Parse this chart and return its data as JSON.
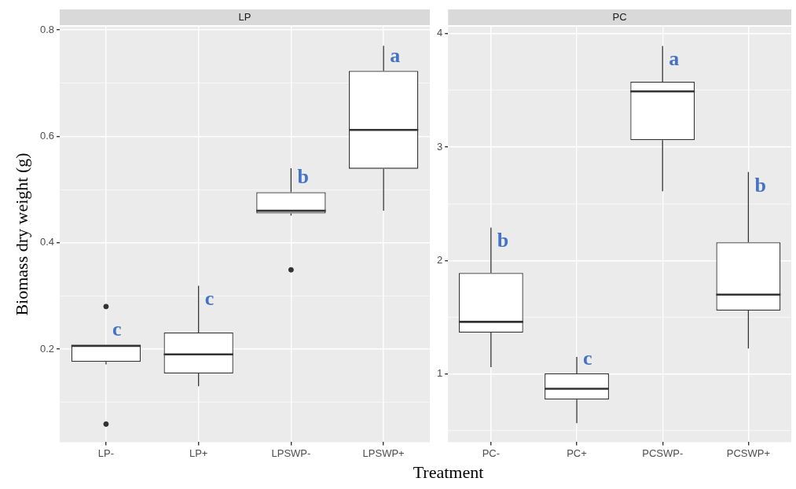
{
  "chart_data": [
    {
      "type": "box",
      "title": "LP",
      "ylabel": "Biomass dry weight (g)",
      "xlabel": "Treatment",
      "color": "#333333",
      "categories": [
        "LP-",
        "LP+",
        "LPSWP-",
        "LPSWP+"
      ],
      "boxes": [
        {
          "low": 0.171,
          "q1": 0.176,
          "median": 0.206,
          "q3": 0.208,
          "high": 0.208,
          "outliers": [
            0.28,
            0.059
          ]
        },
        {
          "low": 0.13,
          "q1": 0.154,
          "median": 0.19,
          "q3": 0.231,
          "high": 0.319
        },
        {
          "low": 0.451,
          "q1": 0.455,
          "median": 0.46,
          "q3": 0.495,
          "high": 0.54,
          "outliers": [
            0.349
          ]
        },
        {
          "low": 0.46,
          "q1": 0.539,
          "median": 0.612,
          "q3": 0.723,
          "high": 0.77
        }
      ],
      "ylim": [
        0.025,
        0.806
      ],
      "yticks": [
        {
          "value": 0.1,
          "label": null
        },
        0.2,
        {
          "value": 0.3,
          "label": null
        },
        0.4,
        {
          "value": 0.5,
          "label": null
        },
        0.6,
        {
          "value": 0.7,
          "label": null
        },
        0.8
      ],
      "grid": true,
      "annotations": [
        "c",
        "c",
        "b",
        "a"
      ]
    },
    {
      "type": "box",
      "title": "PC",
      "color": "#333333",
      "categories": [
        "PC-",
        "PC+",
        "PCSWP-",
        "PCSWP+"
      ],
      "boxes": [
        {
          "low": 1.06,
          "q1": 1.365,
          "median": 1.46,
          "q3": 1.89,
          "high": 2.29
        },
        {
          "low": 0.567,
          "q1": 0.775,
          "median": 0.87,
          "q3": 1.005,
          "high": 1.15
        },
        {
          "low": 2.61,
          "q1": 3.06,
          "median": 3.49,
          "q3": 3.575,
          "high": 3.89
        },
        {
          "low": 1.226,
          "q1": 1.56,
          "median": 1.7,
          "q3": 2.16,
          "high": 2.78
        }
      ],
      "ylim": [
        0.4,
        4.06
      ],
      "yticks": [
        {
          "value": 0.5,
          "label": null
        },
        1,
        {
          "value": 1.5,
          "label": null
        },
        2,
        {
          "value": 2.5,
          "label": null
        },
        3,
        {
          "value": 3.5,
          "label": null
        },
        4
      ],
      "grid": true,
      "annotations": [
        "b",
        "c",
        "a",
        "b"
      ]
    }
  ]
}
